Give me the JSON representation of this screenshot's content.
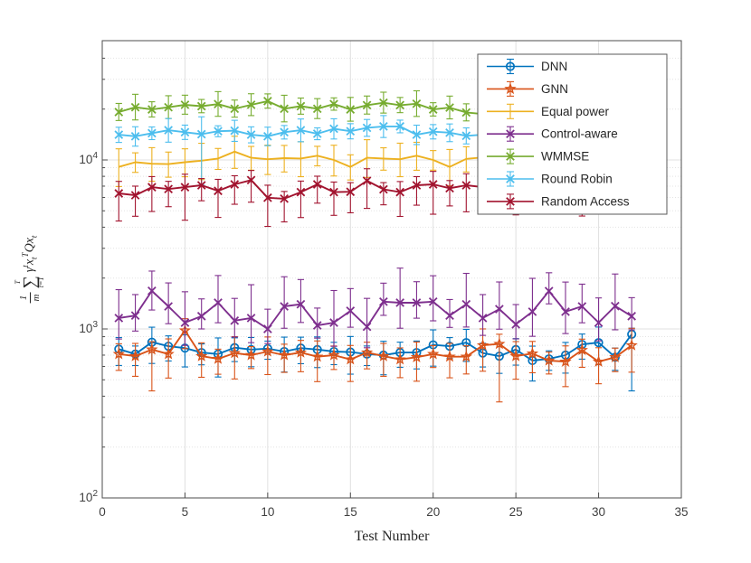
{
  "figure": {
    "background": "#ffffff"
  },
  "chart_data": {
    "type": "line",
    "title": "",
    "xlabel": "Test Number",
    "ylabel_text": "(1/m) sum_{t=1}^{T} gamma^t x_t^T Q x_t",
    "ylabel_parts": {
      "num": "1",
      "den": "m",
      "sum_sup": "T",
      "sigma": "∑",
      "sum_sub": "t=1",
      "gamma": "γ",
      "gamma_sup": "t",
      "x1": "x",
      "x1_sub": "t",
      "x1_sup": "T",
      "q": "Q",
      "x2": "x",
      "x2_sub": "t"
    },
    "xlim": [
      0,
      35
    ],
    "ylim": [
      100,
      50800
    ],
    "y_scale": "log",
    "grid": true,
    "minor_grid": true,
    "legend_position": "northeast",
    "x_ticks": [
      "0",
      "5",
      "10",
      "15",
      "20",
      "25",
      "30",
      "35"
    ],
    "x_tick_values": [
      0,
      5,
      10,
      15,
      20,
      25,
      30,
      35
    ],
    "y_ticks": [
      {
        "base": "10",
        "exp": "2",
        "value": 100
      },
      {
        "base": "10",
        "exp": "3",
        "value": 1000
      },
      {
        "base": "10",
        "exp": "4",
        "value": 10000
      }
    ],
    "x": [
      1,
      2,
      3,
      4,
      5,
      6,
      7,
      8,
      9,
      10,
      11,
      12,
      13,
      14,
      15,
      16,
      17,
      18,
      19,
      20,
      21,
      22,
      23,
      24,
      25,
      26,
      27,
      28,
      29,
      30,
      31,
      32
    ],
    "series": [
      {
        "name": "DNN",
        "color": "#0072BD",
        "marker": "circle",
        "err_lo_frac": 0.8,
        "err_hi_frac": 1.17,
        "values": [
          760,
          710,
          835,
          790,
          770,
          725,
          710,
          775,
          755,
          765,
          735,
          770,
          755,
          735,
          730,
          710,
          700,
          725,
          725,
          805,
          790,
          830,
          720,
          690,
          755,
          650,
          665,
          700,
          810,
          830,
          680,
          930
        ]
      },
      {
        "name": "GNN",
        "color": "#D95319",
        "marker": "pentagram",
        "err_lo_frac": 0.77,
        "err_hi_frac": 1.18,
        "values": [
          710,
          690,
          755,
          710,
          980,
          690,
          665,
          720,
          700,
          735,
          700,
          725,
          685,
          700,
          660,
          725,
          690,
          660,
          680,
          710,
          685,
          685,
          800,
          815,
          690,
          715,
          650,
          640,
          750,
          640,
          680,
          800
        ]
      },
      {
        "name": "Equal power",
        "color": "#EDB120",
        "marker": "none",
        "err_lo_frac": 0.82,
        "err_hi_frac": 1.2,
        "values": [
          9100,
          9700,
          9500,
          9450,
          9700,
          9900,
          10200,
          11200,
          10300,
          10100,
          10250,
          10200,
          10600,
          10000,
          9100,
          10300,
          10200,
          10100,
          10600,
          10000,
          9100,
          10150,
          10350,
          10200,
          10400,
          9900,
          10300,
          10100,
          10500,
          10200,
          10000,
          10300
        ]
      },
      {
        "name": "Control-aware",
        "color": "#7E2F8E",
        "marker": "x",
        "err_lo_frac": 0.78,
        "err_hi_frac": 1.4,
        "values": [
          1160,
          1200,
          1680,
          1360,
          1090,
          1190,
          1430,
          1120,
          1160,
          1000,
          1360,
          1400,
          1050,
          1090,
          1280,
          1030,
          1450,
          1430,
          1430,
          1450,
          1200,
          1400,
          1160,
          1310,
          1065,
          1265,
          1675,
          1265,
          1360,
          1090,
          1365,
          1190
        ]
      },
      {
        "name": "WMMSE",
        "color": "#77AC30",
        "marker": "x",
        "err_lo_frac": 0.88,
        "err_hi_frac": 1.14,
        "values": [
          19200,
          20500,
          19900,
          20500,
          21200,
          20800,
          21400,
          20100,
          21200,
          22300,
          20100,
          20800,
          20100,
          21400,
          19900,
          21100,
          21800,
          21100,
          21500,
          19900,
          20400,
          19100,
          18700,
          20000,
          20500,
          19800,
          20300,
          19900,
          20600,
          20100,
          19800,
          20200
        ]
      },
      {
        "name": "Round Robin",
        "color": "#4DBEEE",
        "marker": "x",
        "err_lo_frac": 0.89,
        "err_hi_frac": 1.12,
        "values": [
          14100,
          13800,
          14400,
          15000,
          14600,
          14200,
          14800,
          14900,
          14100,
          13800,
          14600,
          15000,
          14300,
          15300,
          14800,
          15500,
          15800,
          15800,
          14100,
          14700,
          14500,
          13900,
          14100,
          14600,
          15100,
          14400,
          14900,
          14700,
          15200,
          14800,
          14500,
          15000
        ]
      },
      {
        "name": "Random Access",
        "color": "#A2142F",
        "marker": "x",
        "err_lo_frac": 0.74,
        "err_hi_frac": 1.14,
        "values": [
          6340,
          6180,
          6900,
          6730,
          6900,
          7080,
          6560,
          7170,
          7600,
          5980,
          5900,
          6450,
          7170,
          6450,
          6480,
          7530,
          6700,
          6450,
          7080,
          7170,
          6800,
          7080,
          6900,
          6800,
          7000,
          6600,
          6900,
          6700,
          7100,
          6800,
          6600,
          6900
        ]
      }
    ],
    "errbar_jitter": [
      1.0,
      0.7,
      1.3,
      0.9,
      1.15,
      0.75,
      1.4,
      0.85,
      1.05,
      0.65,
      1.25,
      0.95,
      1.1,
      0.8,
      1.35,
      0.7,
      1.2,
      0.9,
      1.0,
      1.3,
      0.75,
      1.15,
      0.85,
      1.05,
      0.95,
      1.25,
      0.7,
      1.1,
      0.9,
      1.35,
      0.8,
      1.2
    ],
    "errbar_overrides": [
      {
        "series": "GNN",
        "x": 5,
        "hi": 1150
      },
      {
        "series": "GNN",
        "x": 3,
        "lo": 430
      },
      {
        "series": "GNN",
        "x": 24,
        "lo": 370
      },
      {
        "series": "DNN",
        "x": 32,
        "lo": 430,
        "hi": 1010
      },
      {
        "series": "Control-aware",
        "x": 3,
        "hi": 2200
      },
      {
        "series": "Control-aware",
        "x": 27,
        "hi": 2150
      },
      {
        "series": "Round Robin",
        "x": 6,
        "lo": 7100,
        "hi": 18000
      },
      {
        "series": "Random Access",
        "x": 5,
        "lo": 4400
      },
      {
        "series": "Random Access",
        "x": 11,
        "lo": 4300
      }
    ],
    "colors": {
      "spine": "#4d4d4d",
      "tick": "#4d4d4d",
      "tick_label": "#3f3f3f",
      "grid_major": "#e0e0e0",
      "grid_minor": "#e4e4e4",
      "legend_border": "#595959",
      "legend_bg": "#ffffff",
      "legend_text": "#262626"
    }
  }
}
